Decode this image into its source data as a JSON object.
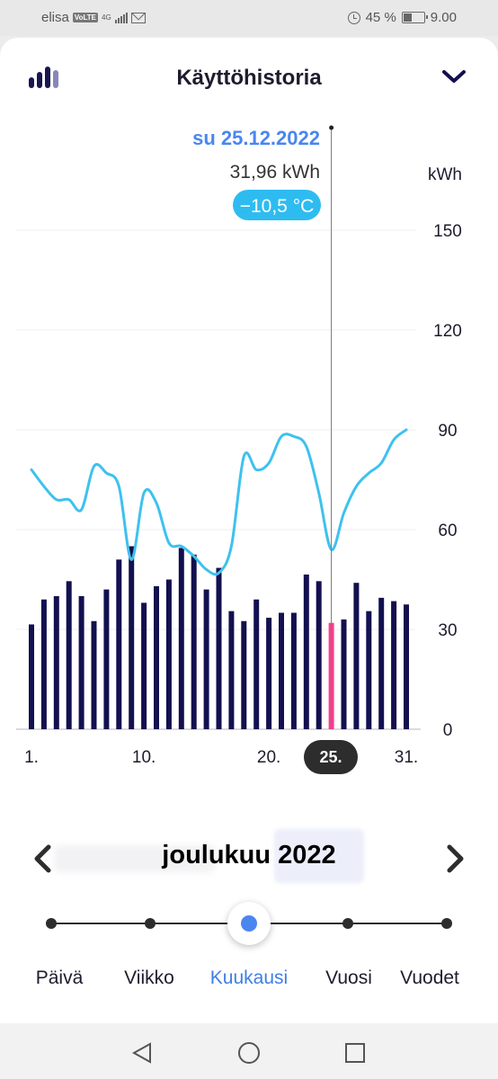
{
  "status_bar": {
    "carrier": "elisa",
    "volte": "VoLTE",
    "network": "4G",
    "battery_text": "45 %",
    "battery_level": 0.45,
    "time": "9.00"
  },
  "header": {
    "title": "Käyttöhistoria",
    "left_icon": "bar-chart-icon",
    "right_icon": "chevron-down-icon"
  },
  "tooltip": {
    "date": "su 25.12.2022",
    "value": "31,96 kWh",
    "temperature": "−10,5 °C"
  },
  "colors": {
    "bar": "#13104f",
    "selected_bar": "#ff3f8e",
    "temperature_line": "#3ec1ef",
    "accent": "#4a86f0",
    "temperature_badge": "#2ebcf0"
  },
  "chart_data": {
    "type": "bar",
    "unit": "kWh",
    "ylim": [
      0,
      150
    ],
    "yticks": [
      0,
      30,
      60,
      90,
      120,
      150
    ],
    "xtick_labels": [
      "1.",
      "10.",
      "20.",
      "25.",
      "31."
    ],
    "xtick_days": [
      1,
      10,
      20,
      25,
      31
    ],
    "selected_day": 25,
    "days": [
      1,
      2,
      3,
      4,
      5,
      6,
      7,
      8,
      9,
      10,
      11,
      12,
      13,
      14,
      15,
      16,
      17,
      18,
      19,
      20,
      21,
      22,
      23,
      24,
      25,
      26,
      27,
      28,
      29,
      30,
      31
    ],
    "values": [
      31.5,
      39,
      40,
      44.5,
      40,
      32.5,
      42,
      51,
      55,
      38,
      43,
      45,
      54.5,
      52.5,
      42,
      48.5,
      35.5,
      32.5,
      39,
      33.5,
      35,
      35,
      46.5,
      44.5,
      31.96,
      33,
      44,
      35.5,
      39.5,
      38.5,
      37.5
    ],
    "temperature_line_kwh_scale": [
      78,
      73,
      69,
      69,
      66,
      79,
      77,
      73,
      51,
      71,
      68,
      56,
      55,
      52,
      48,
      47,
      55,
      82,
      78,
      80,
      88,
      88,
      85,
      71,
      54,
      65,
      73,
      77,
      80,
      87,
      90
    ],
    "grid": true
  },
  "month": {
    "label": "joulukuu 2022",
    "prev_icon": "chevron-left-icon",
    "next_icon": "chevron-right-icon"
  },
  "periods": [
    {
      "label": "Päivä"
    },
    {
      "label": "Viikko"
    },
    {
      "label": "Kuukausi",
      "active": true
    },
    {
      "label": "Vuosi"
    },
    {
      "label": "Vuodet"
    }
  ],
  "navbar": {
    "back_icon": "back-triangle-icon",
    "home_icon": "home-circle-icon",
    "recents_icon": "recents-square-icon"
  }
}
